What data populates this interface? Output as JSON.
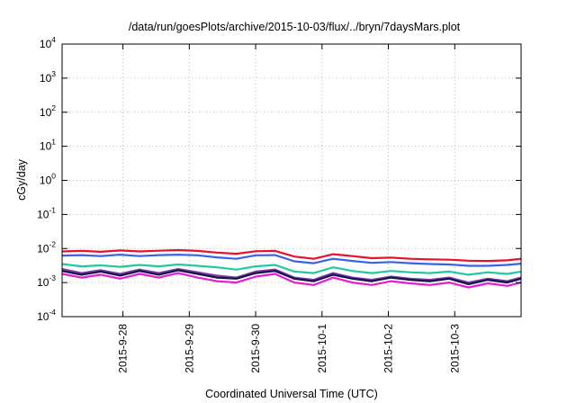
{
  "chart_data": {
    "type": "line",
    "title": "/data/run/goesPlots/archive/2015-10-03/flux/../bryn/7daysMars.plot",
    "xlabel": "Coordinated Universal Time (UTC)",
    "ylabel": "cGy/day",
    "yscale": "log",
    "ylim": [
      0.0001,
      10000
    ],
    "y_ticks": [
      {
        "value": 0.0001,
        "base": "10",
        "exp": "-4"
      },
      {
        "value": 0.001,
        "base": "10",
        "exp": "-3"
      },
      {
        "value": 0.01,
        "base": "10",
        "exp": "-2"
      },
      {
        "value": 0.1,
        "base": "10",
        "exp": "-1"
      },
      {
        "value": 1,
        "base": "10",
        "exp": "0"
      },
      {
        "value": 10,
        "base": "10",
        "exp": "1"
      },
      {
        "value": 100,
        "base": "10",
        "exp": "2"
      },
      {
        "value": 1000,
        "base": "10",
        "exp": "3"
      },
      {
        "value": 10000,
        "base": "10",
        "exp": "4"
      }
    ],
    "xlim": [
      "2015-09-27T02:00",
      "2015-10-04T00:00"
    ],
    "x_ticks": [
      {
        "value": "2015-09-28T00:00",
        "label": "2015-9-28"
      },
      {
        "value": "2015-09-29T00:00",
        "label": "2015-9-29"
      },
      {
        "value": "2015-09-30T00:00",
        "label": "2015-9-30"
      },
      {
        "value": "2015-10-01T00:00",
        "label": "2015-10-1"
      },
      {
        "value": "2015-10-02T00:00",
        "label": "2015-10-2"
      },
      {
        "value": "2015-10-03T00:00",
        "label": "2015-10-3"
      }
    ],
    "grid": true,
    "x": [
      "2015-09-27T02:00",
      "2015-09-27T09:00",
      "2015-09-27T16:00",
      "2015-09-27T23:00",
      "2015-09-28T06:00",
      "2015-09-28T13:00",
      "2015-09-28T20:00",
      "2015-09-29T03:00",
      "2015-09-29T10:00",
      "2015-09-29T17:00",
      "2015-09-30T00:00",
      "2015-09-30T07:00",
      "2015-09-30T14:00",
      "2015-09-30T21:00",
      "2015-10-01T04:00",
      "2015-10-01T11:00",
      "2015-10-01T18:00",
      "2015-10-02T01:00",
      "2015-10-02T08:00",
      "2015-10-02T15:00",
      "2015-10-02T22:00",
      "2015-10-03T05:00",
      "2015-10-03T12:00",
      "2015-10-03T19:00",
      "2015-10-04T00:00"
    ],
    "series": [
      {
        "color": "#e8102a",
        "values": [
          0.0082,
          0.0085,
          0.008,
          0.0088,
          0.0082,
          0.0086,
          0.009,
          0.0085,
          0.0076,
          0.007,
          0.0083,
          0.0085,
          0.0058,
          0.005,
          0.0068,
          0.006,
          0.0052,
          0.0054,
          0.005,
          0.0048,
          0.0047,
          0.0044,
          0.0043,
          0.0045,
          0.005
        ]
      },
      {
        "color": "#3a62e8",
        "values": [
          0.0062,
          0.0064,
          0.006,
          0.0066,
          0.006,
          0.0064,
          0.0066,
          0.0063,
          0.0055,
          0.005,
          0.0063,
          0.0064,
          0.0042,
          0.0037,
          0.005,
          0.0043,
          0.0038,
          0.004,
          0.0037,
          0.0035,
          0.0034,
          0.0031,
          0.0031,
          0.0033,
          0.0036
        ]
      },
      {
        "color": "#22c8a0",
        "values": [
          0.0035,
          0.003,
          0.0032,
          0.0029,
          0.0033,
          0.003,
          0.0034,
          0.0031,
          0.0028,
          0.0024,
          0.003,
          0.0033,
          0.0021,
          0.0019,
          0.0028,
          0.0022,
          0.0019,
          0.0022,
          0.002,
          0.0019,
          0.0021,
          0.0017,
          0.002,
          0.0018,
          0.0021
        ]
      },
      {
        "color": "#7a3aa8",
        "values": [
          0.0025,
          0.0019,
          0.0023,
          0.0018,
          0.0024,
          0.0019,
          0.0025,
          0.002,
          0.0016,
          0.0014,
          0.0021,
          0.0024,
          0.0014,
          0.0012,
          0.0019,
          0.0014,
          0.0012,
          0.0015,
          0.0013,
          0.0012,
          0.0014,
          0.001,
          0.0013,
          0.0011,
          0.0014
        ]
      },
      {
        "color": "#12124a",
        "values": [
          0.0022,
          0.0017,
          0.0021,
          0.0016,
          0.0022,
          0.0017,
          0.0023,
          0.0018,
          0.0014,
          0.0013,
          0.0019,
          0.0022,
          0.0013,
          0.0011,
          0.0017,
          0.0013,
          0.0011,
          0.0014,
          0.0012,
          0.0011,
          0.0013,
          0.0009,
          0.0012,
          0.001,
          0.0013
        ]
      },
      {
        "color": "#e81ad2",
        "values": [
          0.0018,
          0.0014,
          0.0017,
          0.0013,
          0.0018,
          0.0014,
          0.0019,
          0.0014,
          0.0011,
          0.001,
          0.0015,
          0.0018,
          0.001,
          0.00085,
          0.0014,
          0.001,
          0.00085,
          0.0011,
          0.00095,
          0.00085,
          0.001,
          0.00072,
          0.00095,
          0.0008,
          0.001
        ]
      }
    ]
  }
}
